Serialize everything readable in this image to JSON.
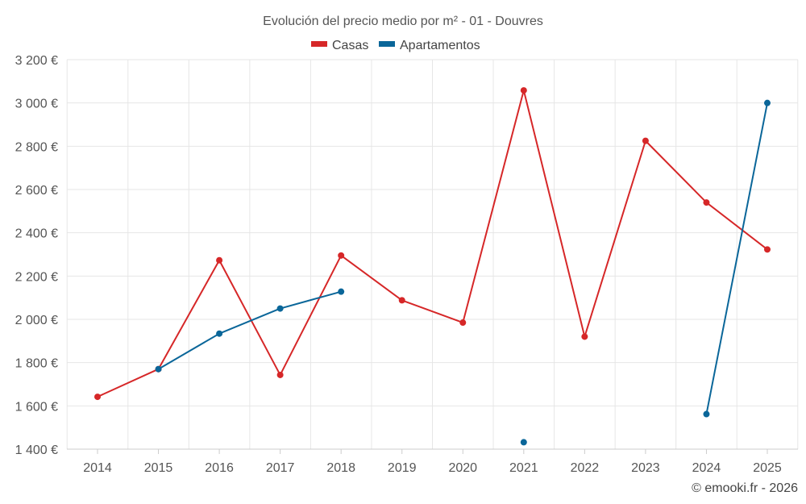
{
  "chart_data": {
    "type": "line",
    "title": "Evolución del precio medio por m² - 01 - Douvres",
    "categories": [
      "2014",
      "2015",
      "2016",
      "2017",
      "2018",
      "2019",
      "2020",
      "2021",
      "2022",
      "2023",
      "2024",
      "2025"
    ],
    "series": [
      {
        "name": "Casas",
        "color": "#d62728",
        "values": [
          1642,
          1770,
          2273,
          1743,
          2295,
          2088,
          1985,
          3058,
          1920,
          2825,
          2540,
          2323
        ]
      },
      {
        "name": "Apartamentos",
        "color": "#0a6699",
        "values": [
          null,
          1770,
          1934,
          2050,
          2128,
          null,
          null,
          1432,
          null,
          null,
          1562,
          3000
        ]
      }
    ],
    "y_ticks": [
      "3 200 €",
      "3 000 €",
      "2 800 €",
      "2 600 €",
      "2 400 €",
      "2 200 €",
      "2 000 €",
      "1 800 €",
      "1 600 €",
      "1 400 €"
    ],
    "ylim": [
      1400,
      3200
    ],
    "xlabel": "",
    "ylabel": "",
    "legend_position": "top-center",
    "grid": true
  },
  "credit": "© emooki.fr - 2026"
}
